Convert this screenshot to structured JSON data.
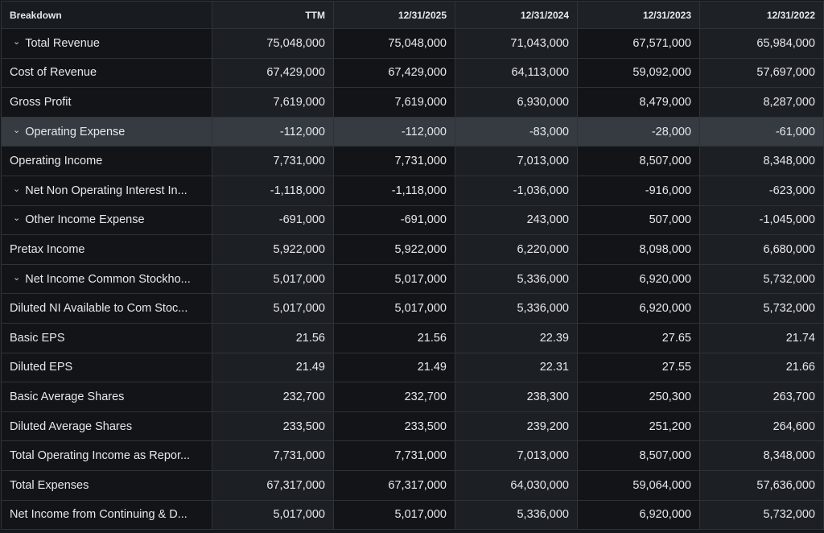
{
  "headers": [
    "Breakdown",
    "TTM",
    "12/31/2025",
    "12/31/2024",
    "12/31/2023",
    "12/31/2022"
  ],
  "icons": {
    "expand": "chevron-down-icon"
  },
  "rows": [
    {
      "label": "Total Revenue",
      "expandable": true,
      "values": [
        "75,048,000",
        "75,048,000",
        "71,043,000",
        "67,571,000",
        "65,984,000"
      ]
    },
    {
      "label": "Cost of Revenue",
      "expandable": false,
      "values": [
        "67,429,000",
        "67,429,000",
        "64,113,000",
        "59,092,000",
        "57,697,000"
      ]
    },
    {
      "label": "Gross Profit",
      "expandable": false,
      "values": [
        "7,619,000",
        "7,619,000",
        "6,930,000",
        "8,479,000",
        "8,287,000"
      ]
    },
    {
      "label": "Operating Expense",
      "expandable": true,
      "highlight": true,
      "values": [
        "-112,000",
        "-112,000",
        "-83,000",
        "-28,000",
        "-61,000"
      ]
    },
    {
      "label": "Operating Income",
      "expandable": false,
      "values": [
        "7,731,000",
        "7,731,000",
        "7,013,000",
        "8,507,000",
        "8,348,000"
      ]
    },
    {
      "label": "Net Non Operating Interest In...",
      "expandable": true,
      "values": [
        "-1,118,000",
        "-1,118,000",
        "-1,036,000",
        "-916,000",
        "-623,000"
      ]
    },
    {
      "label": "Other Income Expense",
      "expandable": true,
      "values": [
        "-691,000",
        "-691,000",
        "243,000",
        "507,000",
        "-1,045,000"
      ]
    },
    {
      "label": "Pretax Income",
      "expandable": false,
      "values": [
        "5,922,000",
        "5,922,000",
        "6,220,000",
        "8,098,000",
        "6,680,000"
      ]
    },
    {
      "label": "Net Income Common Stockho...",
      "expandable": true,
      "values": [
        "5,017,000",
        "5,017,000",
        "5,336,000",
        "6,920,000",
        "5,732,000"
      ]
    },
    {
      "label": "Diluted NI Available to Com Stoc...",
      "expandable": false,
      "values": [
        "5,017,000",
        "5,017,000",
        "5,336,000",
        "6,920,000",
        "5,732,000"
      ]
    },
    {
      "label": "Basic EPS",
      "expandable": false,
      "values": [
        "21.56",
        "21.56",
        "22.39",
        "27.65",
        "21.74"
      ]
    },
    {
      "label": "Diluted EPS",
      "expandable": false,
      "values": [
        "21.49",
        "21.49",
        "22.31",
        "27.55",
        "21.66"
      ]
    },
    {
      "label": "Basic Average Shares",
      "expandable": false,
      "values": [
        "232,700",
        "232,700",
        "238,300",
        "250,300",
        "263,700"
      ]
    },
    {
      "label": "Diluted Average Shares",
      "expandable": false,
      "values": [
        "233,500",
        "233,500",
        "239,200",
        "251,200",
        "264,600"
      ]
    },
    {
      "label": "Total Operating Income as Repor...",
      "expandable": false,
      "values": [
        "7,731,000",
        "7,731,000",
        "7,013,000",
        "8,507,000",
        "8,348,000"
      ]
    },
    {
      "label": "Total Expenses",
      "expandable": false,
      "values": [
        "67,317,000",
        "67,317,000",
        "64,030,000",
        "59,064,000",
        "57,636,000"
      ]
    },
    {
      "label": "Net Income from Continuing & D...",
      "expandable": false,
      "values": [
        "5,017,000",
        "5,017,000",
        "5,336,000",
        "6,920,000",
        "5,732,000"
      ]
    }
  ]
}
